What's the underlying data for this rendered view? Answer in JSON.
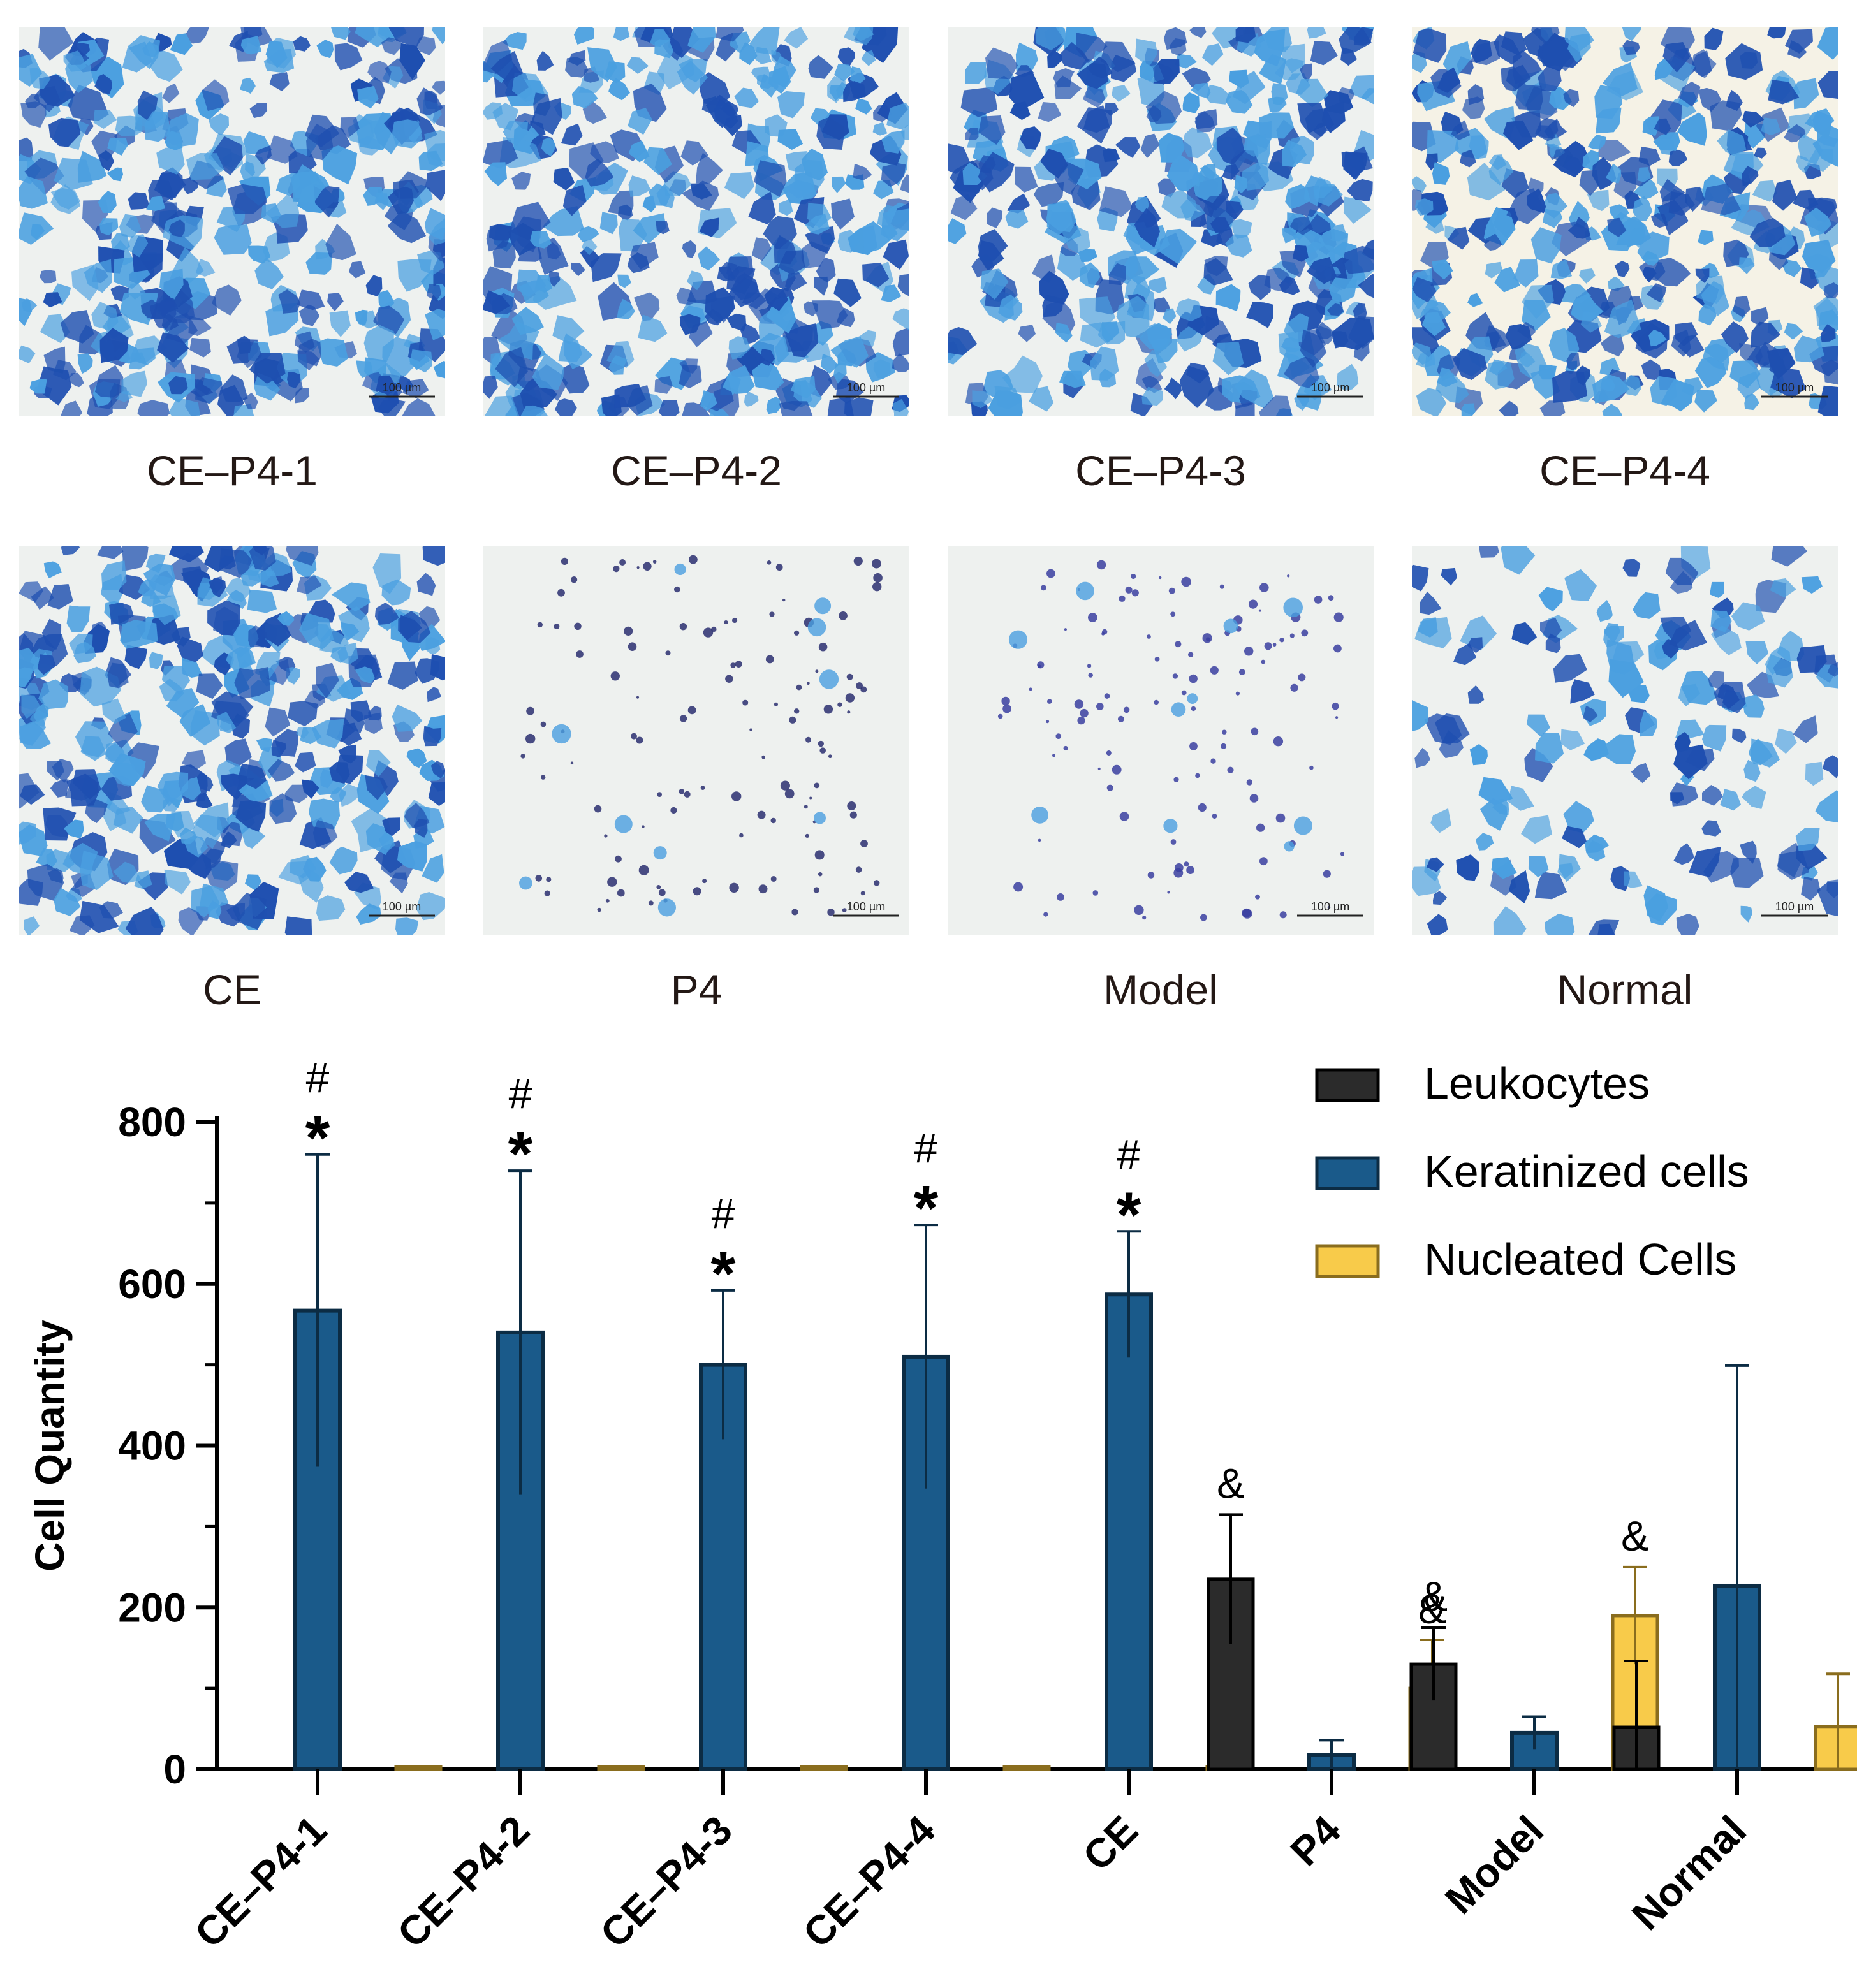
{
  "panels": [
    {
      "label": "CE–P4-1",
      "scale_text": "100 µm",
      "density": "high"
    },
    {
      "label": "CE–P4-2",
      "scale_text": "100 µm",
      "density": "high"
    },
    {
      "label": "CE–P4-3",
      "scale_text": "100 µm",
      "density": "high"
    },
    {
      "label": "CE–P4-4",
      "scale_text": "100 µm",
      "density": "high"
    },
    {
      "label": "CE",
      "scale_text": "100 µm",
      "density": "high"
    },
    {
      "label": "P4",
      "scale_text": "100 µm",
      "density": "sparse"
    },
    {
      "label": "Model",
      "scale_text": "100 µm",
      "density": "sparse"
    },
    {
      "label": "Normal",
      "scale_text": "100 µm",
      "density": "medium"
    }
  ],
  "colors": {
    "leukocytes": "#2b2b2b",
    "keratinized": "#1a5a8a",
    "nucleated": "#f8cb4a",
    "nucleated_edge": "#8a6d1e",
    "keratin_edge": "#0c2c44",
    "stain_dark": "#1e4fb0",
    "stain_light": "#4a9fe0"
  },
  "chart_data": {
    "type": "bar",
    "ylabel": "Cell Quantity",
    "xlabel": "",
    "ylim": [
      0,
      800
    ],
    "yticks": [
      0,
      200,
      400,
      600,
      800
    ],
    "categories": [
      "CE–P4-1",
      "CE–P4-2",
      "CE–P4-3",
      "CE–P4-4",
      "CE",
      "P4",
      "Model",
      "Normal"
    ],
    "series": [
      {
        "name": "Leukocytes",
        "values": [
          0,
          0,
          0,
          0,
          0,
          235,
          130,
          52
        ],
        "errors": [
          0,
          0,
          0,
          0,
          0,
          80,
          45,
          82
        ]
      },
      {
        "name": "Keratinized cells",
        "values": [
          567,
          540,
          500,
          510,
          587,
          18,
          45,
          227
        ],
        "errors": [
          193,
          200,
          92,
          163,
          78,
          18,
          20,
          272
        ]
      },
      {
        "name": "Nucleated Cells",
        "values": [
          3,
          3,
          3,
          3,
          3,
          100,
          190,
          53
        ],
        "errors": [
          0,
          0,
          0,
          0,
          0,
          60,
          60,
          65
        ]
      }
    ],
    "significance": [
      {
        "category": "CE–P4-1",
        "series": "Keratinized cells",
        "marks": [
          "#",
          "*"
        ]
      },
      {
        "category": "CE–P4-2",
        "series": "Keratinized cells",
        "marks": [
          "#",
          "*"
        ]
      },
      {
        "category": "CE–P4-3",
        "series": "Keratinized cells",
        "marks": [
          "#",
          "*"
        ]
      },
      {
        "category": "CE–P4-4",
        "series": "Keratinized cells",
        "marks": [
          "#",
          "*"
        ]
      },
      {
        "category": "CE",
        "series": "Keratinized cells",
        "marks": [
          "#",
          "*"
        ]
      },
      {
        "category": "P4",
        "series": "Leukocytes",
        "marks": [
          "&"
        ]
      },
      {
        "category": "P4",
        "series": "Nucleated Cells",
        "marks": [
          "&"
        ]
      },
      {
        "category": "Model",
        "series": "Leukocytes",
        "marks": [
          "&"
        ]
      },
      {
        "category": "Model",
        "series": "Nucleated Cells",
        "marks": [
          "&"
        ]
      }
    ],
    "legend": {
      "position": "top-right",
      "entries": [
        "Leukocytes",
        "Keratinized cells",
        "Nucleated Cells"
      ]
    }
  }
}
